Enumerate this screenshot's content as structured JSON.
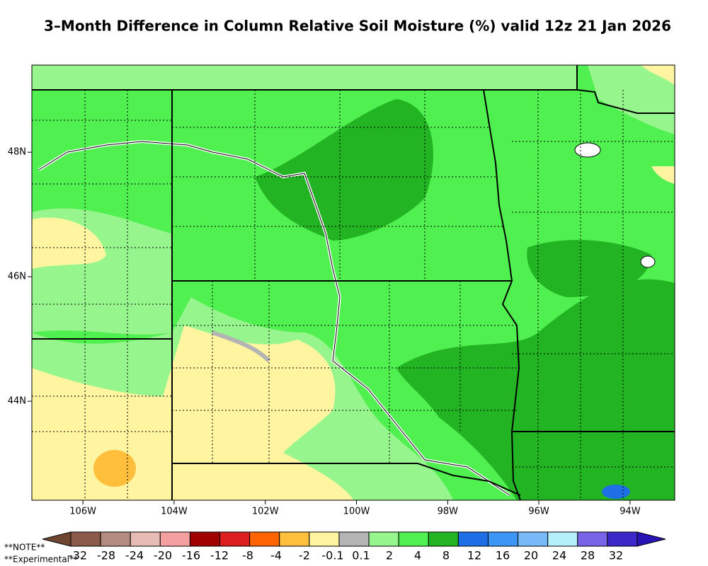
{
  "title": "3–Month Difference in Column Relative Soil Moisture (%) valid 12z 21 Jan 2026",
  "lon_range": [
    -107.12,
    -93.02
  ],
  "lat_range": [
    42.41,
    49.4
  ],
  "lon_ticks": [
    {
      "value": -106,
      "label": "106W"
    },
    {
      "value": -104,
      "label": "104W"
    },
    {
      "value": -102,
      "label": "102W"
    },
    {
      "value": -100,
      "label": "100W"
    },
    {
      "value": -98,
      "label": "98W"
    },
    {
      "value": -96,
      "label": "96W"
    },
    {
      "value": -94,
      "label": "94W"
    }
  ],
  "lat_ticks": [
    {
      "value": 48,
      "label": "48N"
    },
    {
      "value": 46,
      "label": "46N"
    },
    {
      "value": 44,
      "label": "44N"
    }
  ],
  "legend": {
    "labels": [
      "-32",
      "-28",
      "-24",
      "-20",
      "-16",
      "-12",
      "-8",
      "-4",
      "-2",
      "-0.1",
      "0.1",
      "2",
      "4",
      "8",
      "12",
      "16",
      "20",
      "24",
      "28",
      "32"
    ],
    "colors": [
      "#6e4630",
      "#8c5a4a",
      "#b48c82",
      "#e6bcb4",
      "#f5a0a0",
      "#a00000",
      "#dc1e1e",
      "#ff6400",
      "#ffbe3c",
      "#fff5a0",
      "#b4b4b4",
      "#96f58c",
      "#50f050",
      "#23b423",
      "#1e6ee6",
      "#3c96f5",
      "#78b9fa",
      "#b4f0fa",
      "#7864e6",
      "#3c28c8",
      "#2814b4"
    ]
  },
  "notes": [
    "**NOTE**",
    "**Experimental**"
  ]
}
